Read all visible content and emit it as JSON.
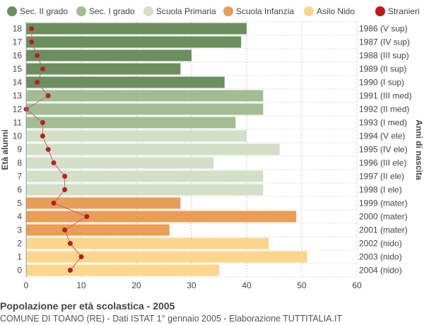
{
  "chart_data": {
    "type": "bar",
    "orientation": "horizontal",
    "title": "Popolazione per età scolastica - 2005",
    "subtitle": "COMUNE DI TOANO (RE) - Dati ISTAT 1° gennaio 2005 - Elaborazione TUTTITALIA.IT",
    "ylabel_left": "Età alunni",
    "ylabel_right": "Anni di nascita",
    "xlim": [
      0,
      60
    ],
    "xticks": [
      0,
      10,
      20,
      30,
      40,
      50,
      60
    ],
    "grid": true,
    "legend_position": "top",
    "legend": [
      {
        "name": "Sec. II grado",
        "color": "#6b8f5e"
      },
      {
        "name": "Sec. I grado",
        "color": "#a3bc94"
      },
      {
        "name": "Scuola Primaria",
        "color": "#d3dfc7"
      },
      {
        "name": "Scuola Infanzia",
        "color": "#e99d57"
      },
      {
        "name": "Asilo Nido",
        "color": "#fbd68c"
      },
      {
        "name": "Stranieri",
        "color": "#c0181c"
      }
    ],
    "rows": [
      {
        "age": "18",
        "birth": "1986 (V sup)",
        "value": 40,
        "stranieri": 1,
        "group": 0
      },
      {
        "age": "17",
        "birth": "1987 (IV sup)",
        "value": 39,
        "stranieri": 1,
        "group": 0
      },
      {
        "age": "16",
        "birth": "1988 (III sup)",
        "value": 30,
        "stranieri": 2,
        "group": 0
      },
      {
        "age": "15",
        "birth": "1989 (II sup)",
        "value": 28,
        "stranieri": 3,
        "group": 0
      },
      {
        "age": "14",
        "birth": "1990 (I sup)",
        "value": 36,
        "stranieri": 2,
        "group": 0
      },
      {
        "age": "13",
        "birth": "1991 (III med)",
        "value": 43,
        "stranieri": 4,
        "group": 1
      },
      {
        "age": "12",
        "birth": "1992 (II med)",
        "value": 43,
        "stranieri": 0,
        "group": 1
      },
      {
        "age": "11",
        "birth": "1993 (I med)",
        "value": 38,
        "stranieri": 3,
        "group": 1
      },
      {
        "age": "10",
        "birth": "1994 (V ele)",
        "value": 40,
        "stranieri": 3,
        "group": 2
      },
      {
        "age": "9",
        "birth": "1995 (IV ele)",
        "value": 46,
        "stranieri": 4,
        "group": 2
      },
      {
        "age": "8",
        "birth": "1996 (III ele)",
        "value": 34,
        "stranieri": 5,
        "group": 2
      },
      {
        "age": "7",
        "birth": "1997 (II ele)",
        "value": 43,
        "stranieri": 7,
        "group": 2
      },
      {
        "age": "6",
        "birth": "1998 (I ele)",
        "value": 43,
        "stranieri": 7,
        "group": 2
      },
      {
        "age": "5",
        "birth": "1999 (mater)",
        "value": 28,
        "stranieri": 5,
        "group": 3
      },
      {
        "age": "4",
        "birth": "2000 (mater)",
        "value": 49,
        "stranieri": 11,
        "group": 3
      },
      {
        "age": "3",
        "birth": "2001 (mater)",
        "value": 26,
        "stranieri": 7,
        "group": 3
      },
      {
        "age": "2",
        "birth": "2002 (nido)",
        "value": 44,
        "stranieri": 8,
        "group": 4
      },
      {
        "age": "1",
        "birth": "2003 (nido)",
        "value": 51,
        "stranieri": 10,
        "group": 4
      },
      {
        "age": "0",
        "birth": "2004 (nido)",
        "value": 35,
        "stranieri": 8,
        "group": 4
      }
    ]
  }
}
